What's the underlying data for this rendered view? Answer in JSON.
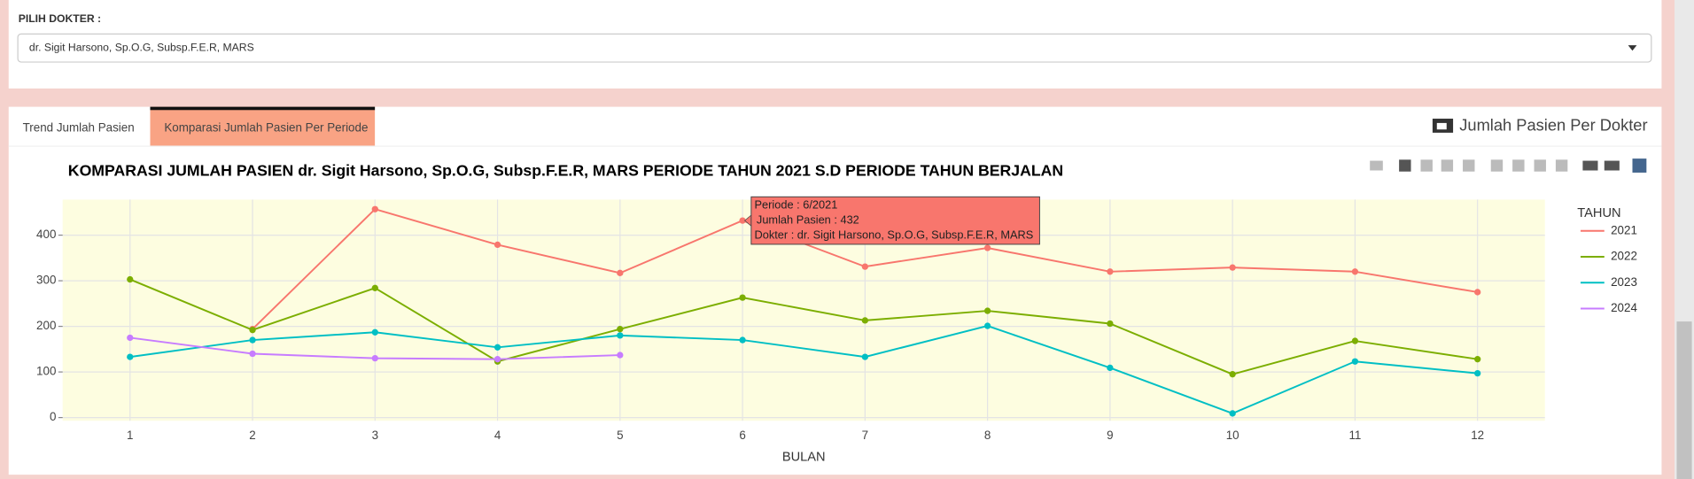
{
  "form": {
    "label": "PILIH DOKTER :",
    "selected": "dr. Sigit Harsono, Sp.O.G, Subsp.F.E.R, MARS"
  },
  "tabs": [
    "Trend Jumlah Pasien",
    "Komparasi Jumlah Pasien Per Periode"
  ],
  "panel_title": "Jumlah Pasien Per Dokter",
  "chart_data": {
    "type": "line",
    "title": "KOMPARASI JUMLAH PASIEN dr. Sigit Harsono, Sp.O.G, Subsp.F.E.R, MARS PERIODE TAHUN 2021 S.D PERIODE TAHUN BERJALAN",
    "x": [
      1,
      2,
      3,
      4,
      5,
      6,
      7,
      8,
      9,
      10,
      11,
      12
    ],
    "xlabel": "BULAN",
    "legend_title": "TAHUN",
    "series": [
      {
        "name": "2021",
        "color": "#f8766d",
        "values": [
          null,
          194,
          457,
          379,
          317,
          432,
          331,
          372,
          320,
          329,
          320,
          275
        ]
      },
      {
        "name": "2022",
        "color": "#7cae00",
        "values": [
          303,
          192,
          284,
          123,
          194,
          263,
          213,
          234,
          206,
          95,
          168,
          128
        ]
      },
      {
        "name": "2023",
        "color": "#00bfc4",
        "values": [
          133,
          170,
          187,
          154,
          180,
          170,
          133,
          201,
          109,
          9,
          123,
          97
        ]
      },
      {
        "name": "2024",
        "color": "#c77cff",
        "values": [
          175,
          140,
          130,
          128,
          137,
          null,
          null,
          null,
          null,
          null,
          null,
          null
        ]
      }
    ],
    "xlim": [
      0.45,
      12.55
    ],
    "ylim": [
      -7,
      478
    ],
    "xticks": [
      1,
      2,
      3,
      4,
      5,
      6,
      7,
      8,
      9,
      10,
      11,
      12
    ],
    "yticks": [
      0,
      100,
      200,
      300,
      400
    ],
    "grid": true,
    "tooltip": {
      "lines": [
        "Periode : 6/2021",
        "Jumlah Pasien : 432",
        "Dokter : dr. Sigit Harsono, Sp.O.G, Subsp.F.E.R, MARS"
      ]
    }
  }
}
